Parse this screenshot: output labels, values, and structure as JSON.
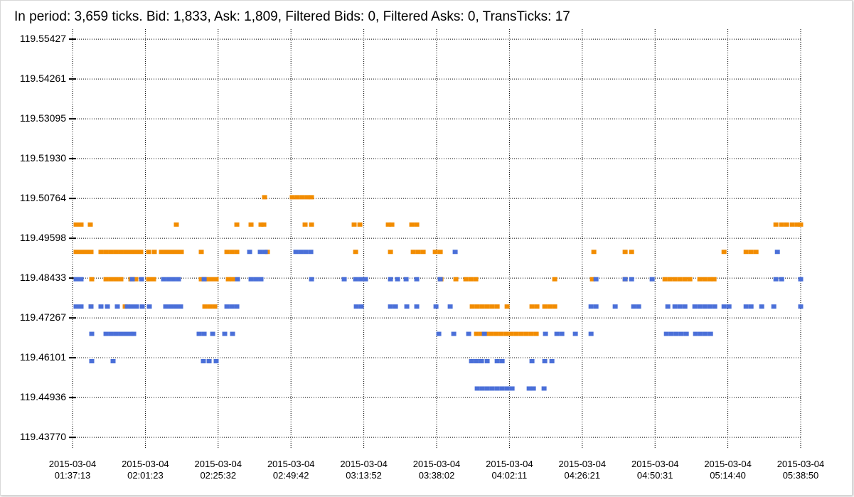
{
  "chart_data": {
    "type": "scatter",
    "title": "In period: 3,659 ticks. Bid: 1,833, Ask: 1,809, Filtered Bids: 0, Filtered Asks: 0, TransTicks: 17",
    "xlim": [
      5833,
      20330
    ],
    "xticks": [
      {
        "value": 5833,
        "label": "2015-03-04\n01:37:13"
      },
      {
        "value": 7283,
        "label": "2015-03-04\n02:01:23"
      },
      {
        "value": 8732,
        "label": "2015-03-04\n02:25:32"
      },
      {
        "value": 10182,
        "label": "2015-03-04\n02:49:42"
      },
      {
        "value": 11632,
        "label": "2015-03-04\n03:13:52"
      },
      {
        "value": 13082,
        "label": "2015-03-04\n03:38:02"
      },
      {
        "value": 14531,
        "label": "2015-03-04\n04:02:11"
      },
      {
        "value": 15981,
        "label": "2015-03-04\n04:26:21"
      },
      {
        "value": 17431,
        "label": "2015-03-04\n04:50:31"
      },
      {
        "value": 18880,
        "label": "2015-03-04\n05:14:40"
      },
      {
        "value": 20330,
        "label": "2015-03-04\n05:38:50"
      }
    ],
    "ylim": [
      119.4344,
      119.5572
    ],
    "yticks": [
      {
        "value": 119.4377,
        "label": "119.43770"
      },
      119.44936,
      119.46101,
      119.47267,
      119.48433,
      119.49598,
      119.50764,
      {
        "value": 119.5193,
        "label": "119.51930"
      },
      119.53095,
      119.54261,
      119.55427
    ],
    "grid": true,
    "series": [
      {
        "color": "#f28c00",
        "x": [
          5904,
          6003,
          6187,
          7900,
          9104,
          9387,
          9585,
          9642,
          10463,
          10591,
          11440,
          11554,
          12120,
          12191,
          12587,
          12686,
          19837,
          19951,
          20050,
          20163,
          20262,
          20330,
          9656,
          10208,
          10308,
          10407,
          10506,
          10591,
          5904,
          6003,
          6102,
          6201,
          6399,
          6499,
          6598,
          6697,
          6796,
          6895,
          6994,
          7093,
          7192,
          7348,
          7461,
          7603,
          7702,
          7801,
          7900,
          7999,
          8396,
          8906,
          9005,
          9104,
          9713,
          11469,
          12163,
          12616,
          12715,
          12814,
          13055,
          13154,
          16212,
          16835,
          16963,
          18804,
          19243,
          19342,
          19441,
          6215,
          6499,
          6598,
          6697,
          6796,
          6994,
          7093,
          7348,
          7447,
          8396,
          8495,
          8594,
          8693,
          8934,
          9019,
          13168,
          13465,
          13663,
          13763,
          13862,
          15433,
          16184,
          16835,
          17628,
          17727,
          17827,
          17926,
          18025,
          18124,
          18322,
          18421,
          18520,
          18605,
          6201,
          6881,
          8467,
          8566,
          8665,
          13791,
          13890,
          13989,
          14088,
          14187,
          14287,
          14485,
          14980,
          15079,
          15235,
          15334,
          15433,
          13876,
          13975,
          14074,
          14173,
          14272,
          14371,
          14471,
          14570,
          14669,
          14768,
          14867,
          14966,
          15065
        ],
        "values": [
          119.5,
          119.5,
          119.5,
          119.5,
          119.5,
          119.5,
          119.5,
          119.5,
          119.5,
          119.5,
          119.5,
          119.5,
          119.5,
          119.5,
          119.5,
          119.5,
          119.5,
          119.5,
          119.5,
          119.5,
          119.5,
          119.5,
          119.508,
          119.508,
          119.508,
          119.508,
          119.508,
          119.508,
          119.492,
          119.492,
          119.492,
          119.492,
          119.492,
          119.492,
          119.492,
          119.492,
          119.492,
          119.492,
          119.492,
          119.492,
          119.492,
          119.492,
          119.492,
          119.492,
          119.492,
          119.492,
          119.492,
          119.492,
          119.492,
          119.492,
          119.492,
          119.492,
          119.492,
          119.492,
          119.492,
          119.492,
          119.492,
          119.492,
          119.492,
          119.492,
          119.492,
          119.492,
          119.492,
          119.492,
          119.492,
          119.492,
          119.492,
          119.484,
          119.484,
          119.484,
          119.484,
          119.484,
          119.484,
          119.484,
          119.484,
          119.484,
          119.484,
          119.484,
          119.484,
          119.484,
          119.484,
          119.484,
          119.484,
          119.484,
          119.484,
          119.484,
          119.484,
          119.484,
          119.484,
          119.484,
          119.484,
          119.484,
          119.484,
          119.484,
          119.484,
          119.484,
          119.484,
          119.484,
          119.484,
          119.484,
          119.476,
          119.476,
          119.476,
          119.476,
          119.476,
          119.476,
          119.476,
          119.476,
          119.476,
          119.476,
          119.476,
          119.476,
          119.476,
          119.476,
          119.476,
          119.476,
          119.476,
          119.468,
          119.468,
          119.468,
          119.468,
          119.468,
          119.468,
          119.468,
          119.468,
          119.468,
          119.468,
          119.468,
          119.468,
          119.468
        ]
      },
      {
        "color": "#4a6fd8",
        "x": [
          9359,
          9571,
          9670,
          10279,
          10378,
          10477,
          10577,
          13451,
          19866,
          5904,
          6003,
          7022,
          7207,
          7645,
          7745,
          7844,
          7943,
          8453,
          9118,
          9387,
          9486,
          9585,
          10591,
          11242,
          11469,
          11568,
          11667,
          12163,
          12304,
          12474,
          12686,
          13154,
          16255,
          16835,
          16963,
          17373,
          19837,
          19951,
          20330,
          5904,
          6003,
          6201,
          6399,
          6527,
          6725,
          6923,
          7008,
          7107,
          7221,
          7362,
          7688,
          7787,
          7886,
          7985,
          8906,
          9005,
          9104,
          11483,
          11582,
          12163,
          12262,
          12488,
          12686,
          13069,
          13352,
          16156,
          16255,
          16637,
          17005,
          17104,
          17685,
          17827,
          17926,
          18025,
          18223,
          18322,
          18421,
          18520,
          18619,
          18804,
          18903,
          19243,
          19342,
          19554,
          19795,
          20330,
          6215,
          6499,
          6598,
          6697,
          6796,
          6895,
          6994,
          7051,
          8353,
          8453,
          8623,
          8863,
          9019,
          13125,
          13423,
          13720,
          14032,
          15249,
          15476,
          15575,
          15844,
          16156,
          17657,
          17756,
          17855,
          17954,
          18053,
          18237,
          18336,
          18435,
          18535,
          6215,
          6640,
          8438,
          8552,
          8693,
          13777,
          13876,
          13975,
          14088,
          14287,
          14386,
          14980,
          15235,
          15377,
          13890,
          13989,
          14088,
          14187,
          14287,
          14386,
          14485,
          14584,
          14924,
          15009,
          15221
        ],
        "values": [
          119.492,
          119.492,
          119.492,
          119.492,
          119.492,
          119.492,
          119.492,
          119.492,
          119.492,
          119.484,
          119.484,
          119.484,
          119.484,
          119.484,
          119.484,
          119.484,
          119.484,
          119.484,
          119.484,
          119.484,
          119.484,
          119.484,
          119.484,
          119.484,
          119.484,
          119.484,
          119.484,
          119.484,
          119.484,
          119.484,
          119.484,
          119.484,
          119.484,
          119.484,
          119.484,
          119.484,
          119.484,
          119.484,
          119.484,
          119.476,
          119.476,
          119.476,
          119.476,
          119.476,
          119.476,
          119.476,
          119.476,
          119.476,
          119.476,
          119.476,
          119.476,
          119.476,
          119.476,
          119.476,
          119.476,
          119.476,
          119.476,
          119.476,
          119.476,
          119.476,
          119.476,
          119.476,
          119.476,
          119.476,
          119.476,
          119.476,
          119.476,
          119.476,
          119.476,
          119.476,
          119.476,
          119.476,
          119.476,
          119.476,
          119.476,
          119.476,
          119.476,
          119.476,
          119.476,
          119.476,
          119.476,
          119.476,
          119.476,
          119.476,
          119.476,
          119.476,
          119.468,
          119.468,
          119.468,
          119.468,
          119.468,
          119.468,
          119.468,
          119.468,
          119.468,
          119.468,
          119.468,
          119.468,
          119.468,
          119.468,
          119.468,
          119.468,
          119.468,
          119.468,
          119.468,
          119.468,
          119.468,
          119.468,
          119.468,
          119.468,
          119.468,
          119.468,
          119.468,
          119.468,
          119.468,
          119.468,
          119.468,
          119.46,
          119.46,
          119.46,
          119.46,
          119.46,
          119.46,
          119.46,
          119.46,
          119.46,
          119.46,
          119.46,
          119.46,
          119.46,
          119.46,
          119.452,
          119.452,
          119.452,
          119.452,
          119.452,
          119.452,
          119.452,
          119.452,
          119.452,
          119.452,
          119.452
        ]
      }
    ]
  }
}
